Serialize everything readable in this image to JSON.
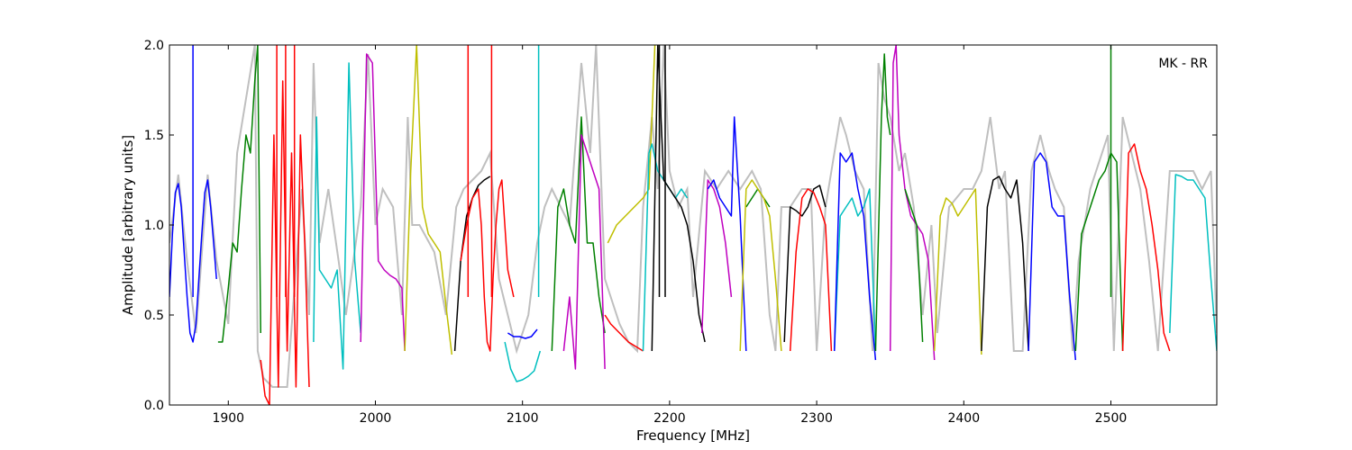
{
  "chart_data": {
    "type": "line",
    "title": "",
    "xlabel": "Frequency [MHz]",
    "ylabel": "Amplitude [arbitrary units]",
    "xlim": [
      1860,
      2572
    ],
    "ylim": [
      0,
      2.0
    ],
    "grid": false,
    "legend": "none",
    "annotation": "MK - RR",
    "xticks": [
      1900,
      2000,
      2100,
      2200,
      2300,
      2400,
      2500
    ],
    "xtick_labels": [
      "1900",
      "2000",
      "2100",
      "2200",
      "2300",
      "2400",
      "2500"
    ],
    "yticks": [
      0.0,
      0.5,
      1.0,
      1.5,
      2.0
    ],
    "ytick_labels": [
      "0.0",
      "0.5",
      "1.0",
      "1.5",
      "2.0"
    ],
    "envelope": {
      "color": "#bfbfbf",
      "x": [
        1860,
        1866,
        1872,
        1878,
        1886,
        1892,
        1900,
        1906,
        1912,
        1918,
        1920,
        1924,
        1930,
        1940,
        1950,
        1955,
        1958,
        1962,
        1968,
        1975,
        1980,
        1985,
        1990,
        1995,
        2000,
        2005,
        2012,
        2018,
        2022,
        2025,
        2030,
        2040,
        2048,
        2055,
        2060,
        2066,
        2072,
        2078,
        2084,
        2090,
        2096,
        2104,
        2110,
        2115,
        2120,
        2126,
        2132,
        2140,
        2146,
        2150,
        2156,
        2160,
        2166,
        2172,
        2178,
        2182,
        2188,
        2192,
        2196,
        2200,
        2206,
        2212,
        2216,
        2224,
        2232,
        2240,
        2248,
        2256,
        2262,
        2268,
        2272,
        2276,
        2282,
        2290,
        2296,
        2300,
        2306,
        2312,
        2316,
        2320,
        2326,
        2332,
        2338,
        2342,
        2346,
        2350,
        2356,
        2360,
        2366,
        2372,
        2378,
        2382,
        2390,
        2400,
        2406,
        2412,
        2418,
        2424,
        2428,
        2434,
        2440,
        2446,
        2452,
        2458,
        2462,
        2468,
        2474,
        2478,
        2486,
        2494,
        2498,
        2502,
        2508,
        2514,
        2520,
        2526,
        2532,
        2540,
        2548,
        2556,
        2562,
        2568,
        2572
      ],
      "y": [
        0.9,
        1.28,
        0.8,
        0.4,
        1.28,
        0.8,
        0.45,
        1.4,
        1.7,
        2.0,
        0.3,
        0.15,
        0.1,
        0.1,
        1.2,
        0.5,
        1.9,
        0.9,
        1.2,
        0.8,
        0.5,
        0.8,
        1.1,
        1.95,
        1.0,
        1.2,
        1.1,
        0.5,
        1.6,
        1.0,
        1.0,
        0.85,
        0.5,
        1.1,
        1.2,
        1.25,
        1.3,
        1.4,
        0.7,
        0.5,
        0.3,
        0.5,
        0.9,
        1.1,
        1.2,
        1.1,
        1.0,
        1.9,
        1.4,
        2.0,
        0.7,
        0.6,
        0.45,
        0.35,
        0.3,
        1.1,
        1.6,
        1.2,
        2.0,
        1.3,
        1.1,
        1.2,
        0.6,
        1.3,
        1.2,
        1.3,
        1.2,
        1.3,
        1.2,
        0.5,
        0.3,
        1.1,
        1.1,
        1.2,
        1.2,
        0.3,
        1.1,
        1.4,
        1.6,
        1.5,
        1.3,
        1.2,
        0.3,
        1.9,
        1.7,
        1.6,
        1.3,
        1.4,
        1.1,
        0.5,
        1.0,
        0.4,
        1.1,
        1.2,
        1.2,
        1.3,
        1.6,
        1.2,
        1.3,
        0.3,
        0.3,
        1.3,
        1.5,
        1.3,
        1.2,
        1.1,
        0.3,
        0.8,
        1.2,
        1.4,
        1.5,
        0.3,
        1.6,
        1.4,
        1.2,
        0.8,
        0.3,
        1.3,
        1.3,
        1.3,
        1.2,
        1.3,
        0.4
      ]
    },
    "series": [
      {
        "color": "#0000ff",
        "x": [
          1860,
          1862,
          1864,
          1866,
          1868,
          1870,
          1872,
          1874,
          1876,
          1878,
          1880,
          1882,
          1884,
          1886,
          1888,
          1890,
          1892
        ],
        "y": [
          0.6,
          0.95,
          1.18,
          1.23,
          1.1,
          0.85,
          0.6,
          0.4,
          0.35,
          0.45,
          0.7,
          0.95,
          1.18,
          1.25,
          1.1,
          0.9,
          0.7
        ],
        "spikes": [
          [
            1876,
            2.0
          ]
        ]
      },
      {
        "color": "#008000",
        "x": [
          1893,
          1896,
          1900,
          1903,
          1906,
          1909,
          1912,
          1915,
          1918,
          1920,
          1922
        ],
        "y": [
          0.35,
          0.35,
          0.65,
          0.9,
          0.85,
          1.2,
          1.5,
          1.4,
          1.8,
          2.0,
          0.4
        ]
      },
      {
        "color": "#ff0000",
        "x": [
          1922,
          1925,
          1928,
          1931,
          1934,
          1937,
          1940,
          1943,
          1946,
          1949,
          1952,
          1955
        ],
        "y": [
          0.25,
          0.05,
          0.0,
          1.5,
          0.1,
          1.8,
          0.3,
          1.4,
          0.1,
          1.5,
          0.9,
          0.1
        ],
        "spikes": [
          [
            1933,
            2.0
          ],
          [
            1939,
            2.0
          ],
          [
            1945,
            2.0
          ]
        ]
      },
      {
        "color": "#00bfbf",
        "x": [
          1958,
          1960,
          1962,
          1966,
          1970,
          1974,
          1978,
          1982,
          1986,
          1990
        ],
        "y": [
          0.35,
          1.6,
          0.75,
          0.7,
          0.65,
          0.75,
          0.2,
          1.9,
          0.8,
          0.4
        ]
      },
      {
        "color": "#bf00bf",
        "x": [
          1990,
          1994,
          1998,
          2002,
          2006,
          2010,
          2014,
          2018,
          2020
        ],
        "y": [
          0.35,
          1.95,
          1.9,
          0.8,
          0.75,
          0.72,
          0.7,
          0.65,
          0.3
        ]
      },
      {
        "color": "#bfbf00",
        "x": [
          2020,
          2024,
          2028,
          2032,
          2036,
          2040,
          2044,
          2048,
          2052
        ],
        "y": [
          0.3,
          1.3,
          2.0,
          1.1,
          0.95,
          0.9,
          0.85,
          0.55,
          0.28
        ]
      },
      {
        "color": "#000000",
        "x": [
          2054,
          2058,
          2062,
          2066,
          2070,
          2074,
          2078
        ],
        "y": [
          0.3,
          0.8,
          1.05,
          1.15,
          1.22,
          1.25,
          1.27
        ]
      },
      {
        "color": "#ff0000",
        "x": [
          2058,
          2062,
          2066,
          2070,
          2072,
          2074,
          2076,
          2078,
          2080,
          2082,
          2084,
          2086,
          2088,
          2090,
          2094
        ],
        "y": [
          0.8,
          1.0,
          1.15,
          1.2,
          1.0,
          0.6,
          0.35,
          0.3,
          0.7,
          1.0,
          1.2,
          1.25,
          1.0,
          0.75,
          0.6
        ],
        "spikes": [
          [
            2063,
            2.0
          ],
          [
            2079,
            2.0
          ]
        ]
      },
      {
        "color": "#0000ff",
        "x": [
          2090,
          2094,
          2098,
          2102,
          2106,
          2110
        ],
        "y": [
          0.4,
          0.38,
          0.38,
          0.37,
          0.38,
          0.42
        ]
      },
      {
        "color": "#00bfbf",
        "x": [
          2088,
          2092,
          2096,
          2100,
          2104,
          2108,
          2112
        ],
        "y": [
          0.35,
          0.2,
          0.13,
          0.14,
          0.16,
          0.19,
          0.3
        ],
        "spikes": [
          [
            2111,
            2.0
          ]
        ]
      },
      {
        "color": "#008000",
        "x": [
          2120,
          2124,
          2128,
          2132,
          2136,
          2140,
          2144,
          2148,
          2152,
          2156
        ],
        "y": [
          0.3,
          1.1,
          1.2,
          1.0,
          0.9,
          1.6,
          0.9,
          0.9,
          0.6,
          0.4
        ]
      },
      {
        "color": "#bf00bf",
        "x": [
          2128,
          2132,
          2136,
          2140,
          2144,
          2148,
          2152,
          2156
        ],
        "y": [
          0.3,
          0.6,
          0.2,
          1.5,
          1.4,
          1.3,
          1.2,
          0.2
        ]
      },
      {
        "color": "#ff0000",
        "x": [
          2156,
          2160,
          2166,
          2172,
          2178,
          2182
        ],
        "y": [
          0.5,
          0.45,
          0.4,
          0.35,
          0.32,
          0.3
        ]
      },
      {
        "color": "#bfbf00",
        "x": [
          2158,
          2164,
          2170,
          2176,
          2182,
          2186,
          2190
        ],
        "y": [
          0.9,
          1.0,
          1.05,
          1.1,
          1.15,
          1.2,
          2.0
        ]
      },
      {
        "color": "#00bfbf",
        "x": [
          2182,
          2186,
          2188,
          2192,
          2196,
          2200,
          2204,
          2208,
          2212
        ],
        "y": [
          0.3,
          1.4,
          1.45,
          1.3,
          1.25,
          1.2,
          1.15,
          1.2,
          1.15
        ]
      },
      {
        "color": "#000000",
        "x": [
          2188,
          2192,
          2196,
          2200,
          2204,
          2208,
          2212,
          2216,
          2220,
          2224
        ],
        "y": [
          0.3,
          2.0,
          1.25,
          1.2,
          1.15,
          1.1,
          1.0,
          0.8,
          0.5,
          0.35
        ],
        "spikes": [
          [
            2193,
            2.0
          ],
          [
            2197,
            2.0
          ]
        ]
      },
      {
        "color": "#bf00bf",
        "x": [
          2222,
          2226,
          2230,
          2234,
          2238,
          2242
        ],
        "y": [
          0.4,
          1.25,
          1.2,
          1.1,
          0.9,
          0.6
        ]
      },
      {
        "color": "#0000ff",
        "x": [
          2226,
          2230,
          2234,
          2238,
          2242,
          2244,
          2248,
          2252
        ],
        "y": [
          1.2,
          1.25,
          1.15,
          1.1,
          1.05,
          1.6,
          1.05,
          0.3
        ]
      },
      {
        "color": "#008000",
        "x": [
          2252,
          2256,
          2260,
          2264,
          2268
        ],
        "y": [
          1.1,
          1.15,
          1.2,
          1.15,
          1.1
        ]
      },
      {
        "color": "#bfbf00",
        "x": [
          2248,
          2252,
          2256,
          2260,
          2264,
          2268,
          2272,
          2276
        ],
        "y": [
          0.3,
          1.2,
          1.25,
          1.2,
          1.15,
          1.05,
          0.7,
          0.3
        ]
      },
      {
        "color": "#000000",
        "x": [
          2278,
          2282,
          2286,
          2290,
          2294,
          2298,
          2302,
          2306
        ],
        "y": [
          0.35,
          1.1,
          1.08,
          1.05,
          1.1,
          1.2,
          1.22,
          1.1
        ]
      },
      {
        "color": "#ff0000",
        "x": [
          2282,
          2286,
          2290,
          2294,
          2298,
          2302,
          2306,
          2310
        ],
        "y": [
          0.3,
          0.85,
          1.15,
          1.2,
          1.18,
          1.1,
          1.0,
          0.3
        ]
      },
      {
        "color": "#00bfbf",
        "x": [
          2312,
          2316,
          2320,
          2324,
          2328,
          2332,
          2336,
          2340
        ],
        "y": [
          0.3,
          1.05,
          1.1,
          1.15,
          1.05,
          1.1,
          1.2,
          0.3
        ]
      },
      {
        "color": "#0000ff",
        "x": [
          2312,
          2316,
          2320,
          2324,
          2328,
          2332,
          2336,
          2340
        ],
        "y": [
          0.3,
          1.4,
          1.35,
          1.4,
          1.2,
          1.05,
          0.6,
          0.25
        ]
      },
      {
        "color": "#008000",
        "x": [
          2340,
          2344,
          2346,
          2348,
          2350
        ],
        "y": [
          0.3,
          1.6,
          1.95,
          1.6,
          1.5
        ]
      },
      {
        "color": "#bf00bf",
        "x": [
          2350,
          2352,
          2354,
          2356,
          2360,
          2364,
          2368,
          2372,
          2376,
          2380
        ],
        "y": [
          0.3,
          1.9,
          2.0,
          1.5,
          1.2,
          1.05,
          1.0,
          0.95,
          0.8,
          0.25
        ]
      },
      {
        "color": "#008000",
        "x": [
          2360,
          2364,
          2368,
          2372
        ],
        "y": [
          1.2,
          1.1,
          1.0,
          0.35
        ]
      },
      {
        "color": "#bfbf00",
        "x": [
          2380,
          2384,
          2388,
          2392,
          2396,
          2400,
          2404,
          2408,
          2412
        ],
        "y": [
          0.3,
          1.05,
          1.15,
          1.12,
          1.05,
          1.1,
          1.15,
          1.2,
          0.28
        ]
      },
      {
        "color": "#000000",
        "x": [
          2412,
          2416,
          2420,
          2424,
          2428,
          2432,
          2436,
          2440,
          2444
        ],
        "y": [
          0.3,
          1.1,
          1.25,
          1.27,
          1.2,
          1.15,
          1.25,
          0.9,
          0.3
        ]
      },
      {
        "color": "#0000ff",
        "x": [
          2444,
          2448,
          2452,
          2456,
          2460,
          2464,
          2468,
          2472,
          2476
        ],
        "y": [
          0.3,
          1.35,
          1.4,
          1.35,
          1.1,
          1.05,
          1.05,
          0.6,
          0.25
        ]
      },
      {
        "color": "#008000",
        "x": [
          2476,
          2480,
          2484,
          2488,
          2492,
          2496,
          2500,
          2504,
          2508
        ],
        "y": [
          0.3,
          0.95,
          1.05,
          1.15,
          1.25,
          1.3,
          1.4,
          1.35,
          0.3
        ],
        "spikes": [
          [
            2500,
            2.0
          ]
        ]
      },
      {
        "color": "#ff0000",
        "x": [
          2508,
          2512,
          2516,
          2520,
          2524,
          2528,
          2532,
          2536,
          2540
        ],
        "y": [
          0.3,
          1.4,
          1.45,
          1.3,
          1.2,
          1.0,
          0.75,
          0.4,
          0.3
        ]
      },
      {
        "color": "#00bfbf",
        "x": [
          2540,
          2544,
          2548,
          2552,
          2556,
          2560,
          2564,
          2568,
          2572
        ],
        "y": [
          0.4,
          1.28,
          1.27,
          1.25,
          1.25,
          1.2,
          1.15,
          0.7,
          0.3
        ]
      }
    ]
  }
}
